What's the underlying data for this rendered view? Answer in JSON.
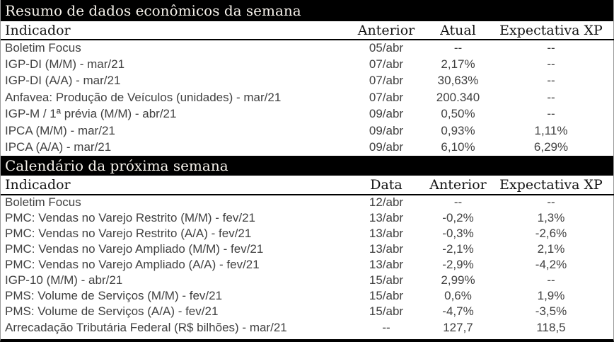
{
  "colors": {
    "bar_background": "#000000",
    "bar_text": "#f7f3ec",
    "header_text": "#141414",
    "data_text": "#414141",
    "rule": "#000000",
    "edge": "#9a9a9a"
  },
  "sections": [
    {
      "title": "Resumo de dados econômicos da semana",
      "columns": [
        "Indicador",
        "Anterior",
        "Atual",
        "Expectativa XP"
      ],
      "rows": [
        [
          "Boletim Focus",
          "05/abr",
          "--",
          "--"
        ],
        [
          "IGP-DI (M/M) - mar/21",
          "07/abr",
          "2,17%",
          "--"
        ],
        [
          "IGP-DI (A/A) - mar/21",
          "07/abr",
          "30,63%",
          "--"
        ],
        [
          "Anfavea: Produção de Veículos (unidades) - mar/21",
          "07/abr",
          "200.340",
          "--"
        ],
        [
          "IGP-M / 1ª prévia (M/M) - abr/21",
          "09/abr",
          "0,50%",
          "--"
        ],
        [
          "IPCA (M/M) - mar/21",
          "09/abr",
          "0,93%",
          "1,11%"
        ],
        [
          "IPCA (A/A) - mar/21",
          "09/abr",
          "6,10%",
          "6,29%"
        ]
      ]
    },
    {
      "title": "Calendário da próxima semana",
      "columns": [
        "Indicador",
        "Data",
        "Anterior",
        "Expectativa XP"
      ],
      "rows": [
        [
          "Boletim Focus",
          "12/abr",
          "--",
          "--"
        ],
        [
          "PMC: Vendas no Varejo Restrito (M/M) - fev/21",
          "13/abr",
          "-0,2%",
          "1,3%"
        ],
        [
          "PMC: Vendas no Varejo Restrito (A/A) - fev/21",
          "13/abr",
          "-0,3%",
          "-2,6%"
        ],
        [
          "PMC: Vendas no Varejo Ampliado (M/M) - fev/21",
          "13/abr",
          "-2,1%",
          "2,1%"
        ],
        [
          "PMC: Vendas no Varejo Ampliado (A/A) - fev/21",
          "13/abr",
          "-2,9%",
          "-4,2%"
        ],
        [
          "IGP-10 (M/M) - abr/21",
          "15/abr",
          "2,99%",
          "--"
        ],
        [
          "PMS: Volume de Serviços (M/M) - fev/21",
          "15/abr",
          "0,6%",
          "1,9%"
        ],
        [
          "PMS: Volume de Serviços (A/A) - fev/21",
          "15/abr",
          "-4,7%",
          "-3,5%"
        ],
        [
          "Arrecadação Tributária Federal (R$ bilhões) - mar/21",
          "--",
          "127,7",
          "118,5"
        ]
      ]
    }
  ]
}
